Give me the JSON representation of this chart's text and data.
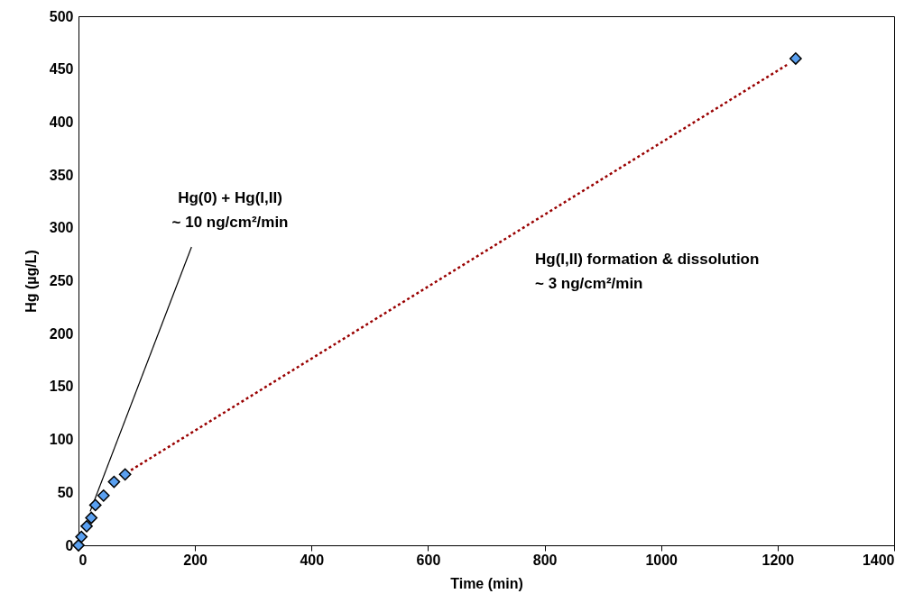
{
  "chart_data": {
    "type": "scatter",
    "xlabel": "Time (min)",
    "ylabel": "Hg (µg/L)",
    "xlim": [
      0,
      1400
    ],
    "xticks": [
      0,
      200,
      400,
      600,
      800,
      1000,
      1200,
      1400
    ],
    "ylim": [
      0,
      500
    ],
    "yticks": [
      0,
      50,
      100,
      150,
      200,
      250,
      300,
      350,
      400,
      450,
      500
    ],
    "grid": false,
    "series": [
      {
        "color": "#5aa0f0",
        "marker": "diamond",
        "x": [
          0,
          5,
          14,
          22,
          29,
          43,
          61,
          80,
          1231
        ],
        "values": [
          0,
          8,
          18,
          26,
          38,
          47,
          60,
          67,
          460
        ]
      },
      {
        "type": "line",
        "color": "#000000",
        "line_style": "solid",
        "x": [
          20,
          194
        ],
        "values": [
          32,
          282
        ]
      },
      {
        "type": "line",
        "color": "#990000",
        "line_style": "dotted",
        "x": [
          90,
          1216
        ],
        "values": [
          71,
          454
        ]
      }
    ],
    "annotations": [
      "Hg(0) + Hg(I,II)\n~ 10 ng/cm²/min",
      "Hg(I,II) formation & dissolution\n~ 3 ng/cm²/min"
    ]
  }
}
